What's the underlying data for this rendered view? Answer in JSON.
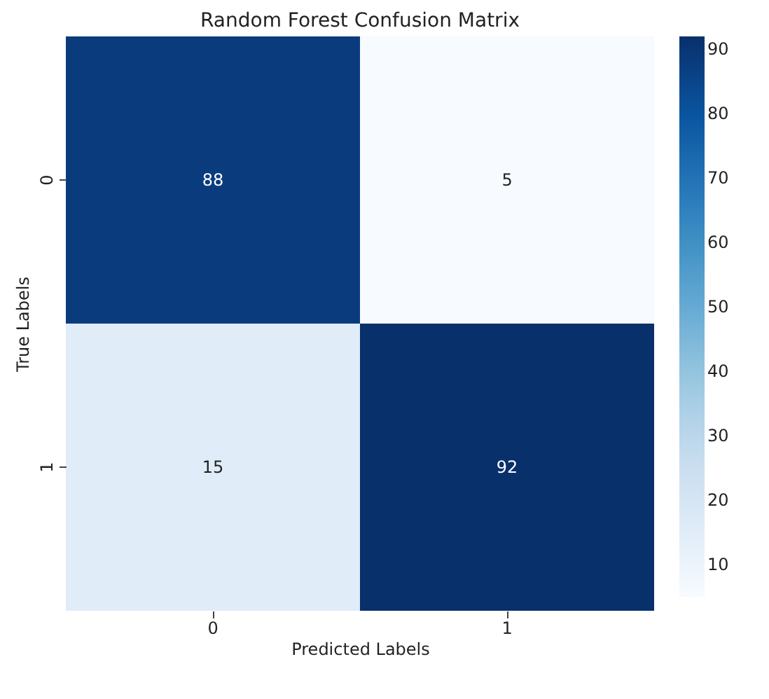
{
  "chart_data": {
    "type": "heatmap",
    "title": "Random Forest Confusion Matrix",
    "xlabel": "Predicted Labels",
    "ylabel": "True Labels",
    "categories": [
      "0",
      "1"
    ],
    "y_categories": [
      "0",
      "1"
    ],
    "cells": [
      [
        88,
        5
      ],
      [
        15,
        92
      ]
    ],
    "data_labels": true,
    "clim": [
      5,
      92
    ],
    "cticks": [
      10,
      20,
      30,
      40,
      50,
      60,
      70,
      80,
      90
    ]
  }
}
